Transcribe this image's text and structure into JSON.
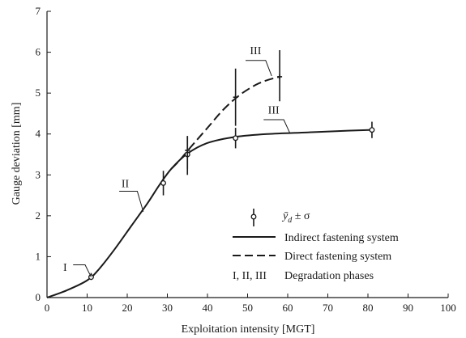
{
  "chart_data": {
    "type": "line",
    "title": "",
    "xlabel": "Exploitation intensity [MGT]",
    "ylabel": "Gauge deviation [mm]",
    "xlim": [
      0,
      100
    ],
    "ylim": [
      0,
      7
    ],
    "xticks": [
      "0",
      "10",
      "20",
      "30",
      "40",
      "50",
      "60",
      "70",
      "80",
      "90",
      "100"
    ],
    "yticks": [
      "0",
      "1",
      "2",
      "3",
      "4",
      "5",
      "6",
      "7"
    ],
    "grid": false,
    "legend_position": "bottom-right",
    "legend": {
      "marker_label_main": "ȳ",
      "marker_label_sub": "d",
      "marker_label_rest": " ± σ",
      "solid_label": "Indirect fastening system",
      "dashed_label": "Direct fastening system",
      "phases_key": "I, II, III",
      "phases_label": "Degradation phases"
    },
    "series": [
      {
        "name": "Indirect fastening system",
        "style": "solid",
        "color": "#1a1a1a",
        "curve_x": [
          0,
          5,
          10,
          13,
          17,
          21,
          25,
          28,
          31,
          35,
          40,
          47,
          55,
          65,
          75,
          81
        ],
        "curve_y": [
          0,
          0.18,
          0.42,
          0.7,
          1.2,
          1.75,
          2.3,
          2.75,
          3.15,
          3.52,
          3.78,
          3.93,
          4.0,
          4.04,
          4.08,
          4.1
        ]
      },
      {
        "name": "Direct fastening system",
        "style": "dashed",
        "color": "#1a1a1a",
        "curve_x": [
          31,
          33,
          36,
          40,
          44,
          48,
          52,
          55,
          58
        ],
        "curve_y": [
          3.15,
          3.35,
          3.7,
          4.15,
          4.6,
          4.95,
          5.2,
          5.32,
          5.4
        ]
      }
    ],
    "points": [
      {
        "x": 11,
        "y": 0.5,
        "low": 0.43,
        "high": 0.6,
        "marker": "open"
      },
      {
        "x": 29,
        "y": 2.8,
        "low": 2.5,
        "high": 3.1,
        "marker": "open"
      },
      {
        "x": 35,
        "y": 3.5,
        "low": 3.0,
        "high": 3.95,
        "marker": "open"
      },
      {
        "x": 47,
        "y": 3.9,
        "low": 3.65,
        "high": 4.15,
        "marker": "open"
      },
      {
        "x": 81,
        "y": 4.1,
        "low": 3.9,
        "high": 4.3,
        "marker": "open"
      },
      {
        "x": 35,
        "y": 3.6,
        "low": 3.15,
        "high": 3.95,
        "marker": "cross"
      },
      {
        "x": 47,
        "y": 4.9,
        "low": 4.2,
        "high": 5.6,
        "marker": "cross"
      },
      {
        "x": 58,
        "y": 5.4,
        "low": 4.8,
        "high": 6.05,
        "marker": "cross"
      }
    ],
    "annotations": [
      {
        "text": "I",
        "x": 4.5,
        "y": 0.65,
        "leader": [
          [
            6.5,
            0.8
          ],
          [
            9.5,
            0.8
          ],
          [
            11,
            0.5
          ]
        ]
      },
      {
        "text": "II",
        "x": 19.5,
        "y": 2.7,
        "leader": [
          [
            18,
            2.6
          ],
          [
            22.5,
            2.6
          ],
          [
            24,
            2.1
          ]
        ]
      },
      {
        "text": "III",
        "x": 52,
        "y": 5.95,
        "leader": [
          [
            49.5,
            5.8
          ],
          [
            54.5,
            5.8
          ],
          [
            56,
            5.42
          ]
        ]
      },
      {
        "text": "III",
        "x": 56.5,
        "y": 4.5,
        "leader": [
          [
            54,
            4.35
          ],
          [
            59,
            4.35
          ],
          [
            60.5,
            4.03
          ]
        ]
      }
    ]
  }
}
